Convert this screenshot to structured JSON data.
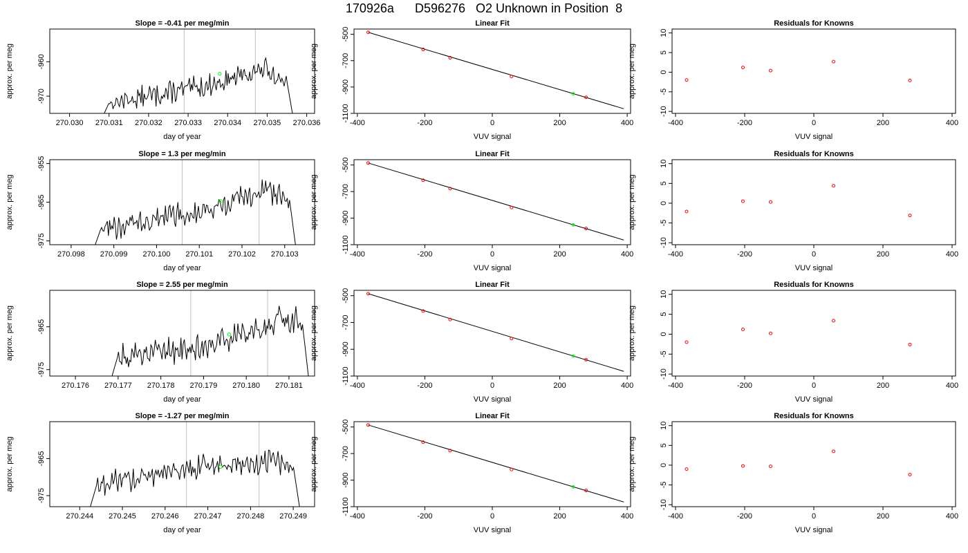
{
  "figure_title": "170926a      D596276   O2 Unknown in Position  8",
  "colors": {
    "trace": "#000000",
    "vline": "#bebebe",
    "unknown": "#00ff00",
    "known": "#ff0000",
    "fit": "#000000"
  },
  "chart_data": [
    {
      "type": "line",
      "title": "Slope =  -0.41  per meg/min",
      "xlabel": "day of year",
      "ylabel": "approx. per meg",
      "xlim": [
        270.0295,
        270.0362
      ],
      "ylim": [
        -975,
        -950.5
      ],
      "xticks": [
        "270.030",
        "270.031",
        "270.032",
        "270.033",
        "270.034",
        "270.035",
        "270.036"
      ],
      "xtick_values": [
        270.03,
        270.031,
        270.032,
        270.033,
        270.034,
        270.035,
        270.036
      ],
      "yticks": [
        "-960",
        "-970"
      ],
      "ytick_values": [
        -960,
        -970
      ],
      "vlines": [
        270.0329,
        270.0347
      ],
      "marker": {
        "x": 270.0338,
        "y": -963.5
      },
      "trace_start": 270.0308,
      "trace_end": 270.0357,
      "base_start": -972,
      "base_mid": -967,
      "base_peak": -962,
      "base_end": -966
    },
    {
      "type": "scatter",
      "title": "Linear Fit",
      "xlabel": "VUV signal",
      "ylabel": "approx. per meg",
      "xlim": [
        -410,
        410
      ],
      "ylim": [
        -1100,
        -460
      ],
      "xticks": [
        "-400",
        "-200",
        "0",
        "200",
        "400"
      ],
      "xtick_values": [
        -400,
        -200,
        0,
        200,
        400
      ],
      "yticks": [
        "-500",
        "-700",
        "-900",
        "-1100"
      ],
      "ytick_values": [
        -500,
        -700,
        -900,
        -1100
      ],
      "knowns_x": [
        -368,
        -205,
        -125,
        57,
        278
      ],
      "knowns_y": [
        -485,
        -615,
        -678,
        -820,
        -978
      ],
      "unknown": {
        "x": 240,
        "y": -951
      },
      "fit_line": [
        [
          -368,
          -485
        ],
        [
          390,
          -1065
        ]
      ]
    },
    {
      "type": "scatter",
      "title": "Residuals for Knowns",
      "xlabel": "VUV signal",
      "ylabel": "approx. per meg",
      "xlim": [
        -410,
        410
      ],
      "ylim": [
        -10.5,
        11
      ],
      "xticks": [
        "-400",
        "-200",
        "0",
        "200",
        "400"
      ],
      "xtick_values": [
        -400,
        -200,
        0,
        200,
        400
      ],
      "yticks": [
        "-10",
        "-5",
        "0",
        "5",
        "10"
      ],
      "ytick_values": [
        -10,
        -5,
        0,
        5,
        10
      ],
      "x": [
        -368,
        -205,
        -125,
        57,
        278
      ],
      "y": [
        -2.0,
        1.2,
        0.4,
        2.7,
        -2.1
      ]
    },
    {
      "type": "line",
      "title": "Slope =  1.3  per meg/min",
      "xlabel": "day of year",
      "ylabel": "approx. per meg",
      "xlim": [
        270.0975,
        270.1037
      ],
      "ylim": [
        -976,
        -954
      ],
      "xticks": [
        "270.098",
        "270.099",
        "270.100",
        "270.101",
        "270.102",
        "270.103"
      ],
      "xtick_values": [
        270.098,
        270.099,
        270.1,
        270.101,
        270.102,
        270.103
      ],
      "yticks": [
        "-955",
        "-965",
        "-975"
      ],
      "ytick_values": [
        -955,
        -965,
        -975
      ],
      "vlines": [
        270.1006,
        270.1024
      ],
      "marker": {
        "x": 270.1015,
        "y": -964.7
      },
      "trace_start": 270.0985,
      "trace_end": 270.1033,
      "base_start": -972,
      "base_mid": -967,
      "base_peak": -962,
      "base_end": -964
    },
    {
      "type": "scatter",
      "title": "Linear Fit",
      "xlabel": "VUV signal",
      "ylabel": "approx. per meg",
      "xlim": [
        -410,
        410
      ],
      "ylim": [
        -1100,
        -460
      ],
      "xticks": [
        "-400",
        "-200",
        "0",
        "200",
        "400"
      ],
      "xtick_values": [
        -400,
        -200,
        0,
        200,
        400
      ],
      "yticks": [
        "-500",
        "-700",
        "-900",
        "-1100"
      ],
      "ytick_values": [
        -500,
        -700,
        -900,
        -1100
      ],
      "knowns_x": [
        -368,
        -205,
        -125,
        57,
        278
      ],
      "knowns_y": [
        -485,
        -615,
        -678,
        -820,
        -978
      ],
      "unknown": {
        "x": 240,
        "y": -951
      },
      "fit_line": [
        [
          -368,
          -485
        ],
        [
          390,
          -1065
        ]
      ]
    },
    {
      "type": "scatter",
      "title": "Residuals for Knowns",
      "xlabel": "VUV signal",
      "ylabel": "approx. per meg",
      "xlim": [
        -410,
        410
      ],
      "ylim": [
        -10.5,
        11
      ],
      "xticks": [
        "-400",
        "-200",
        "0",
        "200",
        "400"
      ],
      "xtick_values": [
        -400,
        -200,
        0,
        200,
        400
      ],
      "yticks": [
        "-10",
        "-5",
        "0",
        "5",
        "10"
      ],
      "ytick_values": [
        -10,
        -5,
        0,
        5,
        10
      ],
      "x": [
        -368,
        -205,
        -125,
        57,
        278
      ],
      "y": [
        -2.1,
        0.5,
        0.3,
        4.4,
        -3.1
      ]
    },
    {
      "type": "line",
      "title": "Slope =  2.55  per meg/min",
      "xlabel": "day of year",
      "ylabel": "approx. per meg",
      "xlim": [
        270.1754,
        270.1816
      ],
      "ylim": [
        -976.5,
        -956.5
      ],
      "xticks": [
        "270.176",
        "270.177",
        "270.178",
        "270.179",
        "270.180",
        "270.181"
      ],
      "xtick_values": [
        270.176,
        270.177,
        270.178,
        270.179,
        270.18,
        270.181
      ],
      "yticks": [
        "-965",
        "-975"
      ],
      "ytick_values": [
        -965,
        -975
      ],
      "vlines": [
        270.1787,
        270.1805
      ],
      "marker": {
        "x": 270.1796,
        "y": -966.8
      },
      "trace_start": 270.1768,
      "trace_end": 270.1815,
      "base_start": -972,
      "base_mid": -969,
      "base_peak": -963,
      "base_end": -964
    },
    {
      "type": "scatter",
      "title": "Linear Fit",
      "xlabel": "VUV signal",
      "ylabel": "approx. per meg",
      "xlim": [
        -410,
        410
      ],
      "ylim": [
        -1100,
        -460
      ],
      "xticks": [
        "-400",
        "-200",
        "0",
        "200",
        "400"
      ],
      "xtick_values": [
        -400,
        -200,
        0,
        200,
        400
      ],
      "yticks": [
        "-500",
        "-700",
        "-900",
        "-1100"
      ],
      "ytick_values": [
        -500,
        -700,
        -900,
        -1100
      ],
      "knowns_x": [
        -368,
        -205,
        -125,
        57,
        278
      ],
      "knowns_y": [
        -485,
        -615,
        -678,
        -820,
        -978
      ],
      "unknown": {
        "x": 240,
        "y": -951
      },
      "fit_line": [
        [
          -368,
          -485
        ],
        [
          390,
          -1065
        ]
      ]
    },
    {
      "type": "scatter",
      "title": "Residuals for Knowns",
      "xlabel": "VUV signal",
      "ylabel": "approx. per meg",
      "xlim": [
        -410,
        410
      ],
      "ylim": [
        -10.5,
        11
      ],
      "xticks": [
        "-400",
        "-200",
        "0",
        "200",
        "400"
      ],
      "xtick_values": [
        -400,
        -200,
        0,
        200,
        400
      ],
      "yticks": [
        "-10",
        "-5",
        "0",
        "5",
        "10"
      ],
      "ytick_values": [
        -10,
        -5,
        0,
        5,
        10
      ],
      "x": [
        -368,
        -205,
        -125,
        57,
        278
      ],
      "y": [
        -2.0,
        1.2,
        0.2,
        3.4,
        -2.6
      ]
    },
    {
      "type": "line",
      "title": "Slope =  -1.27  per meg/min",
      "xlabel": "day of year",
      "ylabel": "approx. per meg",
      "xlim": [
        270.2433,
        270.2495
      ],
      "ylim": [
        -978,
        -955
      ],
      "xticks": [
        "270.244",
        "270.245",
        "270.246",
        "270.247",
        "270.248",
        "270.249"
      ],
      "xtick_values": [
        270.244,
        270.245,
        270.246,
        270.247,
        270.248,
        270.249
      ],
      "yticks": [
        "-965",
        "-975"
      ],
      "ytick_values": [
        -965,
        -975
      ],
      "vlines": [
        270.2465,
        270.2482
      ],
      "marker": {
        "x": 270.2473,
        "y": -967.2
      },
      "trace_start": 270.2442,
      "trace_end": 270.2492,
      "base_start": -972,
      "base_mid": -967,
      "base_peak": -966,
      "base_end": -967
    },
    {
      "type": "scatter",
      "title": "Linear Fit",
      "xlabel": "VUV signal",
      "ylabel": "approx. per meg",
      "xlim": [
        -410,
        410
      ],
      "ylim": [
        -1100,
        -460
      ],
      "xticks": [
        "-400",
        "-200",
        "0",
        "200",
        "400"
      ],
      "xtick_values": [
        -400,
        -200,
        0,
        200,
        400
      ],
      "yticks": [
        "-500",
        "-700",
        "-900",
        "-1100"
      ],
      "ytick_values": [
        -500,
        -700,
        -900,
        -1100
      ],
      "knowns_x": [
        -368,
        -205,
        -125,
        57,
        278
      ],
      "knowns_y": [
        -485,
        -615,
        -678,
        -820,
        -978
      ],
      "unknown": {
        "x": 240,
        "y": -951
      },
      "fit_line": [
        [
          -368,
          -485
        ],
        [
          390,
          -1065
        ]
      ]
    },
    {
      "type": "scatter",
      "title": "Residuals for Knowns",
      "xlabel": "VUV signal",
      "ylabel": "approx. per meg",
      "xlim": [
        -410,
        410
      ],
      "ylim": [
        -10.5,
        11
      ],
      "xticks": [
        "-400",
        "-200",
        "0",
        "200",
        "400"
      ],
      "xtick_values": [
        -400,
        -200,
        0,
        200,
        400
      ],
      "yticks": [
        "-10",
        "-5",
        "0",
        "5",
        "10"
      ],
      "ytick_values": [
        -10,
        -5,
        0,
        5,
        10
      ],
      "x": [
        -368,
        -205,
        -125,
        57,
        278
      ],
      "y": [
        -1.0,
        -0.2,
        -0.3,
        3.5,
        -2.4
      ]
    }
  ]
}
